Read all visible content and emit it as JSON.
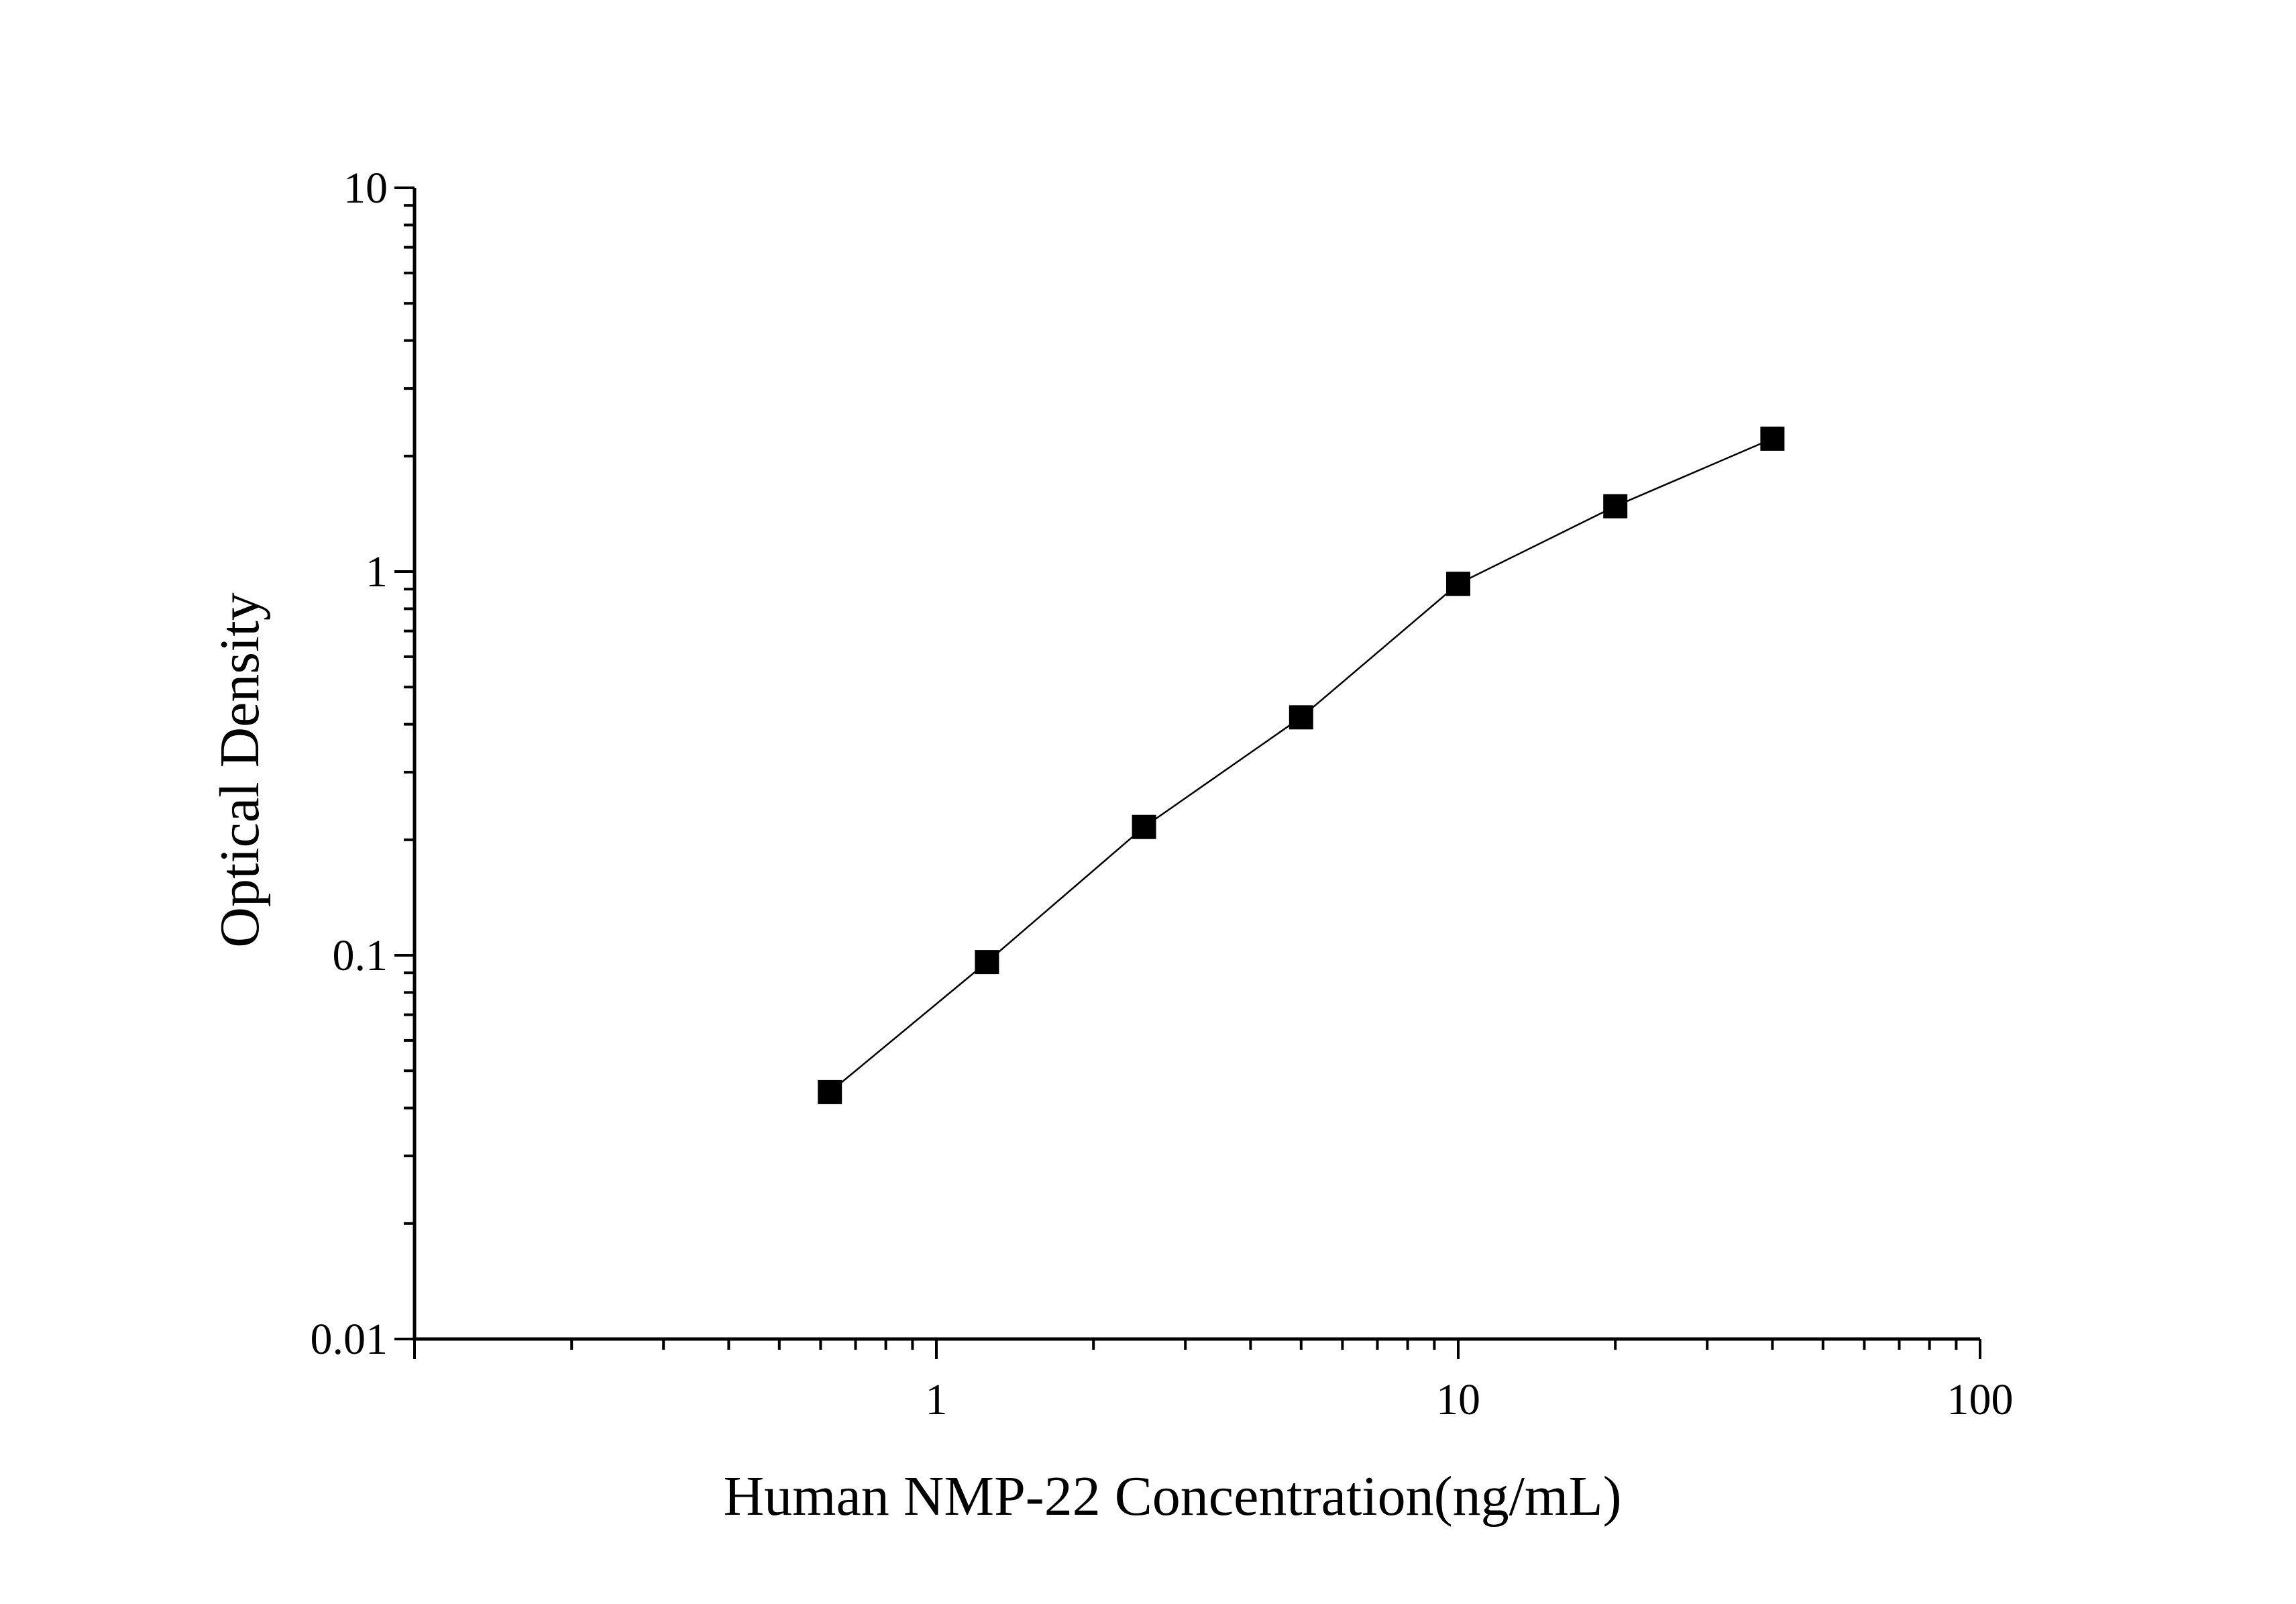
{
  "chart_data": {
    "type": "line",
    "xlabel": "Human NMP-22 Concentration(ng/mL)",
    "ylabel": "Optical Density",
    "x_scale": "log",
    "y_scale": "log",
    "xlim": [
      0.1,
      100
    ],
    "ylim": [
      0.01,
      10
    ],
    "x_tick_labels": [
      "1",
      "10",
      "100"
    ],
    "y_tick_labels": [
      "0.01",
      "0.1",
      "1",
      "10"
    ],
    "grid": false,
    "legend": "none",
    "marker": "square",
    "color": "#000000",
    "series": [
      {
        "x": [
          0.625,
          1.25,
          2.5,
          5,
          10,
          20,
          40
        ],
        "y": [
          0.044,
          0.096,
          0.216,
          0.417,
          0.929,
          1.48,
          2.22
        ]
      }
    ]
  }
}
